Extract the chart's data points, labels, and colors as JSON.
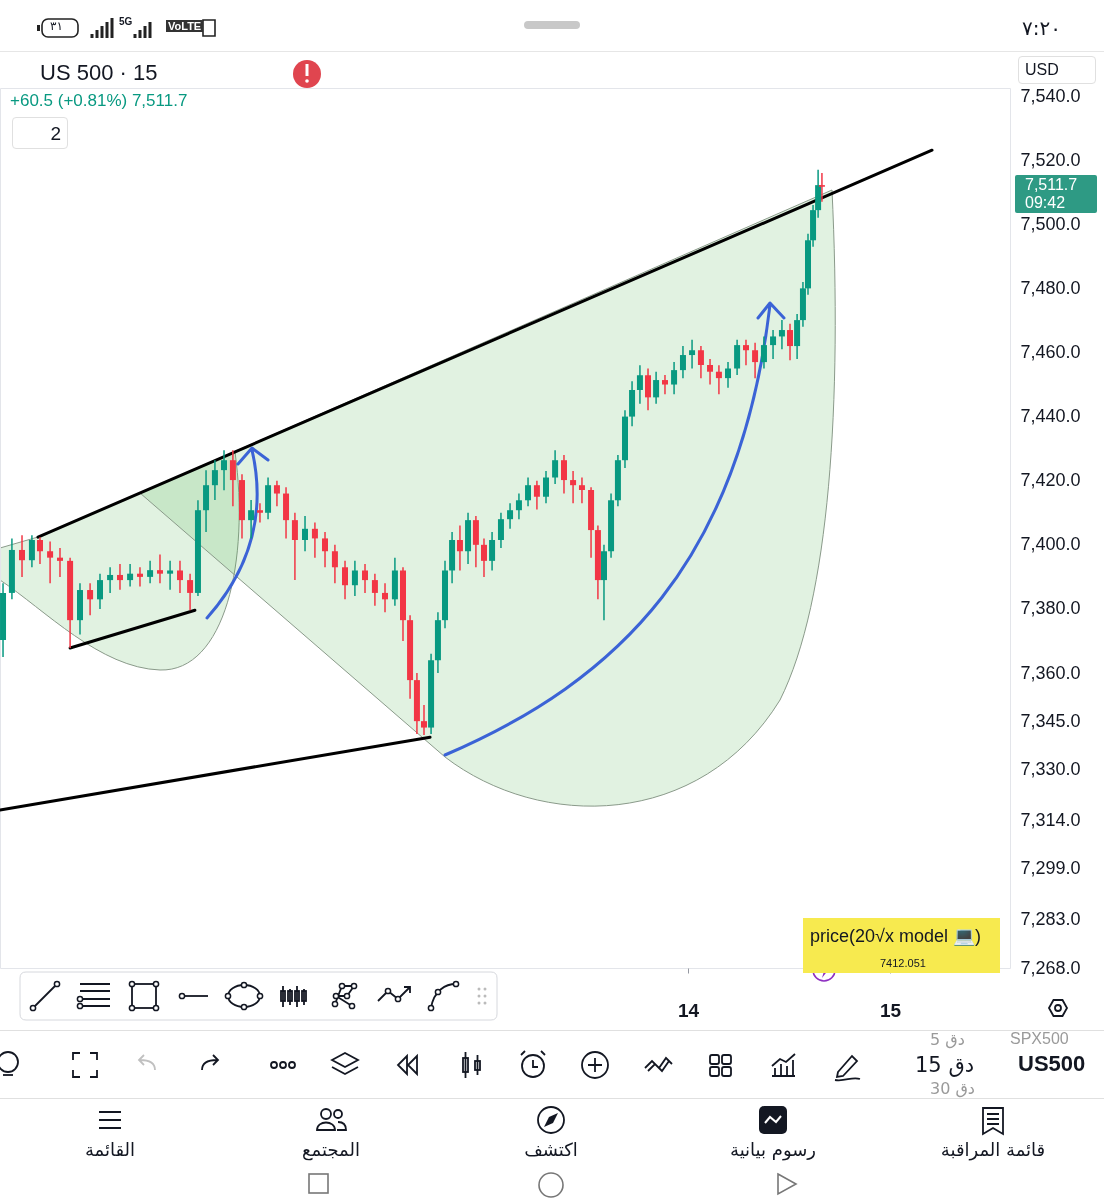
{
  "chart_data": {
    "type": "candlestick",
    "title": "US 500 · 15",
    "subtitle": "+60.5 (+0.81%) 7,511.7",
    "xlim": [
      10.594,
      15.594
    ],
    "xticks": [
      14,
      15
    ],
    "ylim": [
      7268,
      7542.5
    ],
    "yticks": [
      {
        "value": 7540,
        "label": "7,540.0"
      },
      {
        "value": 7520,
        "label": "7,520.0"
      },
      {
        "value": 7500,
        "label": "7,500.0"
      },
      {
        "value": 7480,
        "label": "7,480.0"
      },
      {
        "value": 7460,
        "label": "7,460.0"
      },
      {
        "value": 7440,
        "label": "7,440.0"
      },
      {
        "value": 7420,
        "label": "7,420.0"
      },
      {
        "value": 7400,
        "label": "7,400.0"
      },
      {
        "value": 7380,
        "label": "7,380.0"
      },
      {
        "value": 7360,
        "label": "7,360.0"
      },
      {
        "value": 7345,
        "label": "7,345.0"
      },
      {
        "value": 7330,
        "label": "7,330.0"
      },
      {
        "value": 7314,
        "label": "7,314.0"
      },
      {
        "value": 7299,
        "label": "7,299.0"
      },
      {
        "value": 7283,
        "label": "7,283.0"
      },
      {
        "value": 7268,
        "label": "7,268.0"
      }
    ],
    "series": [
      {
        "type": "line",
        "color": "#000000",
        "x": [
          10.782,
          15.208
        ],
        "values": [
          7402.4,
          7523.1
        ]
      },
      {
        "type": "line",
        "color": "#000000",
        "x": [
          10.941,
          11.559
        ],
        "values": [
          7367.8,
          7379.6
        ]
      },
      {
        "type": "line",
        "color": "#000000",
        "x": [
          10.594,
          12.723
        ],
        "values": [
          7317.3,
          7340.0
        ]
      },
      {
        "type": "candlestick",
        "x": [
          10.609,
          10.653,
          10.703,
          10.752,
          10.792,
          10.842,
          10.891,
          10.941,
          10.99,
          11.04,
          11.089,
          11.139,
          11.188,
          11.238,
          11.287,
          11.337,
          11.386,
          11.436,
          11.485,
          11.535,
          11.574,
          11.614,
          11.658,
          11.703,
          11.747,
          11.792,
          11.837,
          11.881,
          11.921,
          11.965,
          12.01,
          12.054,
          12.104,
          12.153,
          12.203,
          12.252,
          12.302,
          12.351,
          12.401,
          12.45,
          12.5,
          12.549,
          12.589,
          12.624,
          12.658,
          12.693,
          12.728,
          12.762,
          12.797,
          12.832,
          12.871,
          12.911,
          12.95,
          12.99,
          13.03,
          13.074,
          13.119,
          13.163,
          13.208,
          13.252,
          13.297,
          13.342,
          13.386,
          13.431,
          13.475,
          13.52,
          13.554,
          13.584,
          13.619,
          13.653,
          13.688,
          13.723,
          13.762,
          13.802,
          13.842,
          13.886,
          13.931,
          13.975,
          14.02,
          14.064,
          14.109,
          14.153,
          14.198,
          14.243,
          14.287,
          14.332,
          14.376,
          14.421,
          14.465,
          14.505,
          14.54,
          14.569,
          14.594,
          14.619,
          14.644,
          14.663
        ],
        "ohlc": [
          [
            7370.3,
            7388,
            7365,
            7385
          ],
          [
            7385,
            7402,
            7383,
            7398.4
          ],
          [
            7398.4,
            7403,
            7390,
            7395.2
          ],
          [
            7395.2,
            7403,
            7393,
            7401.5
          ],
          [
            7401.5,
            7402.4,
            7394,
            7398
          ],
          [
            7398,
            7401,
            7388,
            7396
          ],
          [
            7396,
            7399,
            7390,
            7395
          ],
          [
            7395,
            7396,
            7367.8,
            7376.5
          ],
          [
            7376.5,
            7388,
            7372,
            7385.9
          ],
          [
            7385.9,
            7388,
            7378,
            7383
          ],
          [
            7383,
            7391,
            7380,
            7389
          ],
          [
            7389,
            7393,
            7385,
            7390.6
          ],
          [
            7390.6,
            7394,
            7386,
            7389
          ],
          [
            7389,
            7394,
            7387,
            7391
          ],
          [
            7391,
            7393,
            7387,
            7390
          ],
          [
            7390,
            7395,
            7388,
            7392.1
          ],
          [
            7392.1,
            7397,
            7388,
            7391
          ],
          [
            7391,
            7395,
            7386,
            7392
          ],
          [
            7392,
            7395,
            7385,
            7389
          ],
          [
            7389,
            7391,
            7379.6,
            7385
          ],
          [
            7385,
            7413.9,
            7384,
            7410.8
          ],
          [
            7410.8,
            7423.3,
            7404,
            7418.6
          ],
          [
            7418.6,
            7426.4,
            7414,
            7423.3
          ],
          [
            7423.3,
            7429.5,
            7417,
            7426.4
          ],
          [
            7426.4,
            7429.5,
            7412,
            7420.2
          ],
          [
            7420.2,
            7422,
            7402,
            7407.7
          ],
          [
            7407.7,
            7414,
            7402,
            7410.8
          ],
          [
            7410.8,
            7413,
            7407,
            7410
          ],
          [
            7410,
            7421,
            7408,
            7418.6
          ],
          [
            7418.6,
            7420,
            7412,
            7416
          ],
          [
            7416,
            7418,
            7402,
            7407.7
          ],
          [
            7407.7,
            7410,
            7389,
            7401.5
          ],
          [
            7401.5,
            7409,
            7398,
            7405
          ],
          [
            7405,
            7407,
            7396,
            7402
          ],
          [
            7402,
            7404,
            7393,
            7398
          ],
          [
            7398,
            7400,
            7388,
            7393
          ],
          [
            7393,
            7395,
            7383,
            7387.4
          ],
          [
            7387.4,
            7395,
            7384,
            7392
          ],
          [
            7392,
            7394,
            7385,
            7389
          ],
          [
            7389,
            7391,
            7381,
            7385
          ],
          [
            7385,
            7388,
            7379,
            7383
          ],
          [
            7383,
            7396,
            7381,
            7392
          ],
          [
            7392,
            7393,
            7370,
            7376.5
          ],
          [
            7376.5,
            7378,
            7352,
            7357.8
          ],
          [
            7357.8,
            7360,
            7341,
            7345
          ],
          [
            7345,
            7350,
            7340.7,
            7343
          ],
          [
            7343,
            7366,
            7341,
            7364
          ],
          [
            7364,
            7379,
            7360,
            7376.5
          ],
          [
            7376.5,
            7395,
            7374,
            7392
          ],
          [
            7392,
            7404,
            7388,
            7401.5
          ],
          [
            7401.5,
            7406,
            7392,
            7398
          ],
          [
            7398,
            7410,
            7394,
            7407.7
          ],
          [
            7407.7,
            7409,
            7393,
            7400
          ],
          [
            7400,
            7402,
            7390,
            7395
          ],
          [
            7395,
            7404,
            7392,
            7401.5
          ],
          [
            7401.5,
            7410,
            7399,
            7408
          ],
          [
            7408,
            7413,
            7405,
            7410.8
          ],
          [
            7410.8,
            7416,
            7408,
            7413.9
          ],
          [
            7413.9,
            7421,
            7412,
            7418.6
          ],
          [
            7418.6,
            7420,
            7411,
            7415
          ],
          [
            7415,
            7423,
            7413,
            7421
          ],
          [
            7421,
            7429.5,
            7419,
            7426.4
          ],
          [
            7426.4,
            7428,
            7416,
            7420.2
          ],
          [
            7420.2,
            7423,
            7413,
            7418.6
          ],
          [
            7418.6,
            7421,
            7413,
            7417.1
          ],
          [
            7417.1,
            7418,
            7396,
            7404.6
          ],
          [
            7404.6,
            7406,
            7383,
            7389
          ],
          [
            7389,
            7400,
            7376.5,
            7398
          ],
          [
            7398,
            7416,
            7396,
            7413.9
          ],
          [
            7413.9,
            7428,
            7412,
            7426.4
          ],
          [
            7426.4,
            7442,
            7424,
            7440
          ],
          [
            7440,
            7451,
            7437,
            7448.3
          ],
          [
            7448.3,
            7456,
            7444,
            7452.9
          ],
          [
            7452.9,
            7455,
            7442,
            7446
          ],
          [
            7446,
            7454,
            7444,
            7451.4
          ],
          [
            7451.4,
            7453,
            7447,
            7450
          ],
          [
            7450,
            7457,
            7447,
            7454.5
          ],
          [
            7454.5,
            7462,
            7452,
            7459.2
          ],
          [
            7459.2,
            7464,
            7455,
            7460.7
          ],
          [
            7460.7,
            7462,
            7452,
            7456.1
          ],
          [
            7456.1,
            7458,
            7450,
            7454
          ],
          [
            7454,
            7456,
            7447,
            7452
          ],
          [
            7452,
            7457,
            7449,
            7455
          ],
          [
            7455,
            7464,
            7453,
            7462.3
          ],
          [
            7462.3,
            7464,
            7456,
            7460.7
          ],
          [
            7460.7,
            7463,
            7452,
            7457
          ],
          [
            7457,
            7465,
            7455,
            7462.3
          ],
          [
            7462.3,
            7467,
            7458,
            7465
          ],
          [
            7465,
            7470.1,
            7461,
            7467
          ],
          [
            7467,
            7469,
            7457.6,
            7462
          ],
          [
            7462,
            7472,
            7458,
            7470.1
          ],
          [
            7470.1,
            7482,
            7468,
            7480
          ],
          [
            7480,
            7497,
            7478,
            7495
          ],
          [
            7495,
            7506,
            7493,
            7504.4
          ],
          [
            7504.4,
            7517,
            7502,
            7512.2
          ],
          [
            7512.2,
            7516,
            7507,
            7511.7
          ]
        ]
      }
    ],
    "annotations": [
      "7,511.7",
      "09:42",
      "2",
      "USD",
      "price(20√x model 💻)",
      "7412.051",
      "٧:٢٠",
      "٣١",
      "5G",
      "VoLTE",
      "5 دق",
      "SPX500",
      "15 دق",
      "US500",
      "30 دق",
      "القائمة",
      "المجتمع",
      "اكتشف",
      "رسوم بيانية",
      "قائمة المراقبة"
    ]
  }
}
